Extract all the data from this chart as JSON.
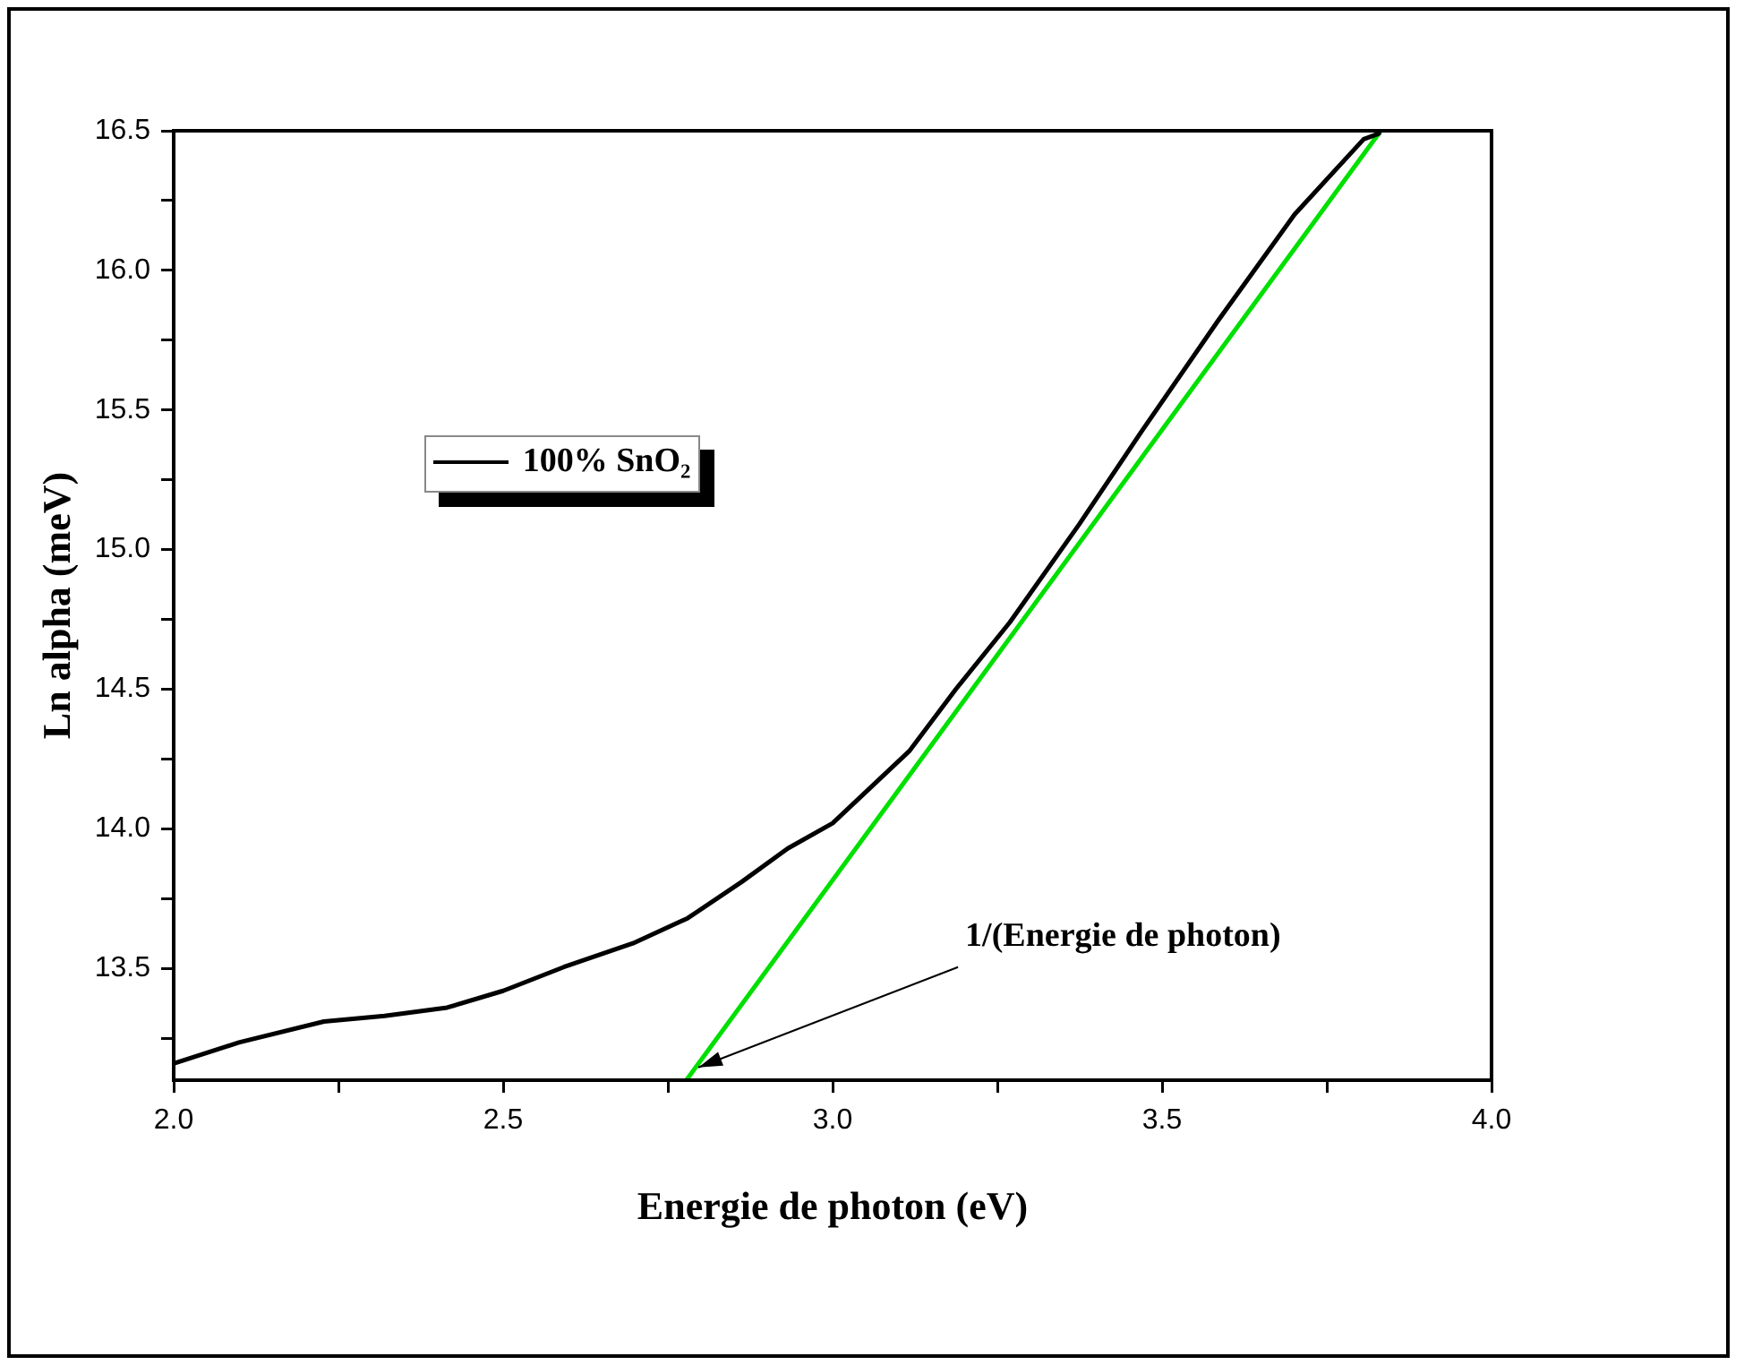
{
  "chart_data": {
    "type": "line",
    "xlabel": "Energie de photon (eV)",
    "ylabel": "Ln alpha (meV)",
    "xlim": [
      2.0,
      4.0
    ],
    "ylim": [
      13.1,
      16.5
    ],
    "xticks": [
      {
        "value": 2,
        "label": "2.0"
      },
      {
        "value": 2.25,
        "label": null
      },
      2.5,
      {
        "value": 2.75,
        "label": null
      },
      {
        "value": 3,
        "label": "3.0"
      },
      {
        "value": 3.25,
        "label": null
      },
      3.5,
      {
        "value": 3.75,
        "label": null
      },
      {
        "value": 4,
        "label": "4.0"
      }
    ],
    "yticks": [
      {
        "value": 13.25,
        "label": null
      },
      13.5,
      {
        "value": 13.75,
        "label": null
      },
      {
        "value": 14,
        "label": "14.0"
      },
      {
        "value": 14.25,
        "label": null
      },
      14.5,
      {
        "value": 14.75,
        "label": null
      },
      {
        "value": 15,
        "label": "15.0"
      },
      {
        "value": 15.25,
        "label": null
      },
      15.5,
      {
        "value": 15.75,
        "label": null
      },
      {
        "value": 16,
        "label": "16.0"
      },
      {
        "value": 16.25,
        "label": null
      },
      16.5
    ],
    "grid": false,
    "legend": "top left",
    "marker": "none",
    "line_style": "solid",
    "series": [
      {
        "name": "100% SnO₂",
        "color": "#000000",
        "x": [
          2.0,
          2.099,
          2.228,
          2.32,
          2.415,
          2.5,
          2.592,
          2.697,
          2.78,
          2.862,
          2.932,
          3.0,
          3.117,
          3.187,
          3.269,
          3.374,
          3.468,
          3.585,
          3.701,
          3.806,
          3.829
        ],
        "values": [
          13.16,
          13.235,
          13.31,
          13.33,
          13.36,
          13.42,
          13.505,
          13.59,
          13.68,
          13.81,
          13.93,
          14.02,
          14.28,
          14.5,
          14.74,
          15.09,
          15.42,
          15.82,
          16.2,
          16.47,
          16.49
        ]
      },
      {
        "color": "#00e000",
        "x": [
          2.778,
          3.832
        ],
        "values": [
          13.1,
          16.5
        ]
      }
    ],
    "annotations": [
      {
        "text": "1/(Energie de photon)",
        "x": 2.78,
        "y": 13.12
      }
    ]
  }
}
